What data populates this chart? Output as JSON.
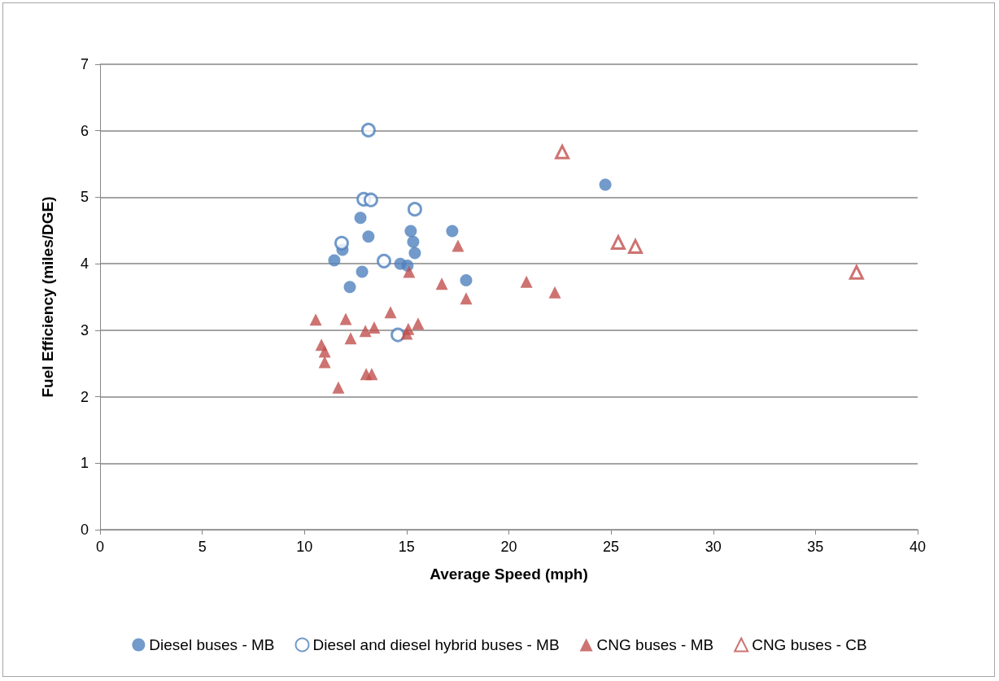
{
  "chart_data": {
    "type": "scatter",
    "xlabel": "Average Speed (mph)",
    "ylabel": "Fuel Efficiency (miles/DGE)",
    "xlim": [
      0,
      40
    ],
    "xticks": [
      0,
      5,
      10,
      15,
      20,
      25,
      30,
      35,
      40
    ],
    "ylim": [
      0,
      7
    ],
    "yticks": [
      0,
      1,
      2,
      3,
      4,
      5,
      6,
      7
    ],
    "grid": "y",
    "legend": "bottom",
    "series": [
      {
        "name": "Diesel buses - MB",
        "color": "#4f81bd",
        "marker": "circle",
        "x": [
          11.46,
          11.86,
          12.74,
          13.13,
          12.82,
          12.22,
          14.69,
          15.04,
          15.2,
          15.32,
          15.4,
          17.23,
          17.91,
          24.72
        ],
        "values": [
          4.05,
          4.21,
          4.69,
          4.41,
          3.88,
          3.65,
          4.0,
          3.97,
          4.49,
          4.33,
          4.16,
          4.49,
          3.75,
          5.19
        ]
      },
      {
        "name": "Diesel and diesel hybrid buses - MB",
        "color": "#4f81bd",
        "marker": "circle-open",
        "x": [
          13.13,
          12.9,
          13.25,
          15.4,
          11.82,
          13.89,
          14.57
        ],
        "values": [
          6.01,
          4.97,
          4.96,
          4.82,
          4.31,
          4.04,
          2.93
        ]
      },
      {
        "name": "CNG buses - MB",
        "color": "#c0504d",
        "marker": "triangle",
        "x": [
          10.55,
          10.83,
          10.99,
          10.99,
          11.66,
          12.02,
          12.26,
          12.98,
          13.41,
          13.02,
          13.29,
          14.21,
          15.0,
          15.08,
          15.12,
          15.56,
          17.51,
          16.72,
          17.91,
          20.86,
          22.25
        ],
        "values": [
          3.16,
          2.78,
          2.68,
          2.52,
          2.14,
          3.17,
          2.88,
          2.99,
          3.04,
          2.34,
          2.34,
          3.27,
          2.95,
          3.02,
          3.88,
          3.1,
          4.27,
          3.7,
          3.48,
          3.73,
          3.57
        ]
      },
      {
        "name": "CNG buses - CB",
        "color": "#c0504d",
        "marker": "triangle-open",
        "x": [
          22.61,
          25.35,
          26.19,
          37.01
        ],
        "values": [
          5.68,
          4.32,
          4.26,
          3.87
        ]
      }
    ]
  }
}
